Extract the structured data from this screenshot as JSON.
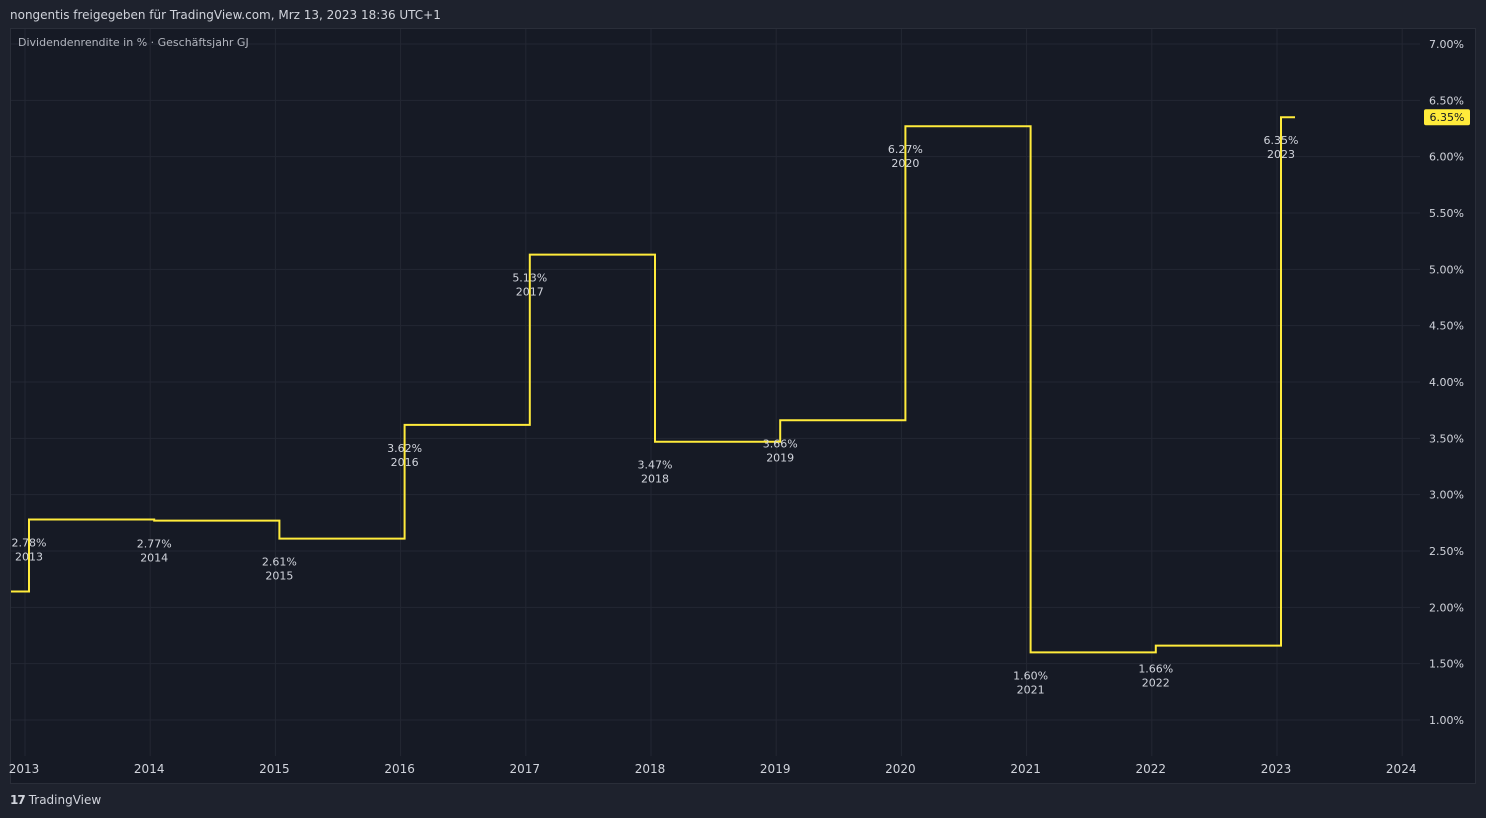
{
  "header": {
    "attribution": "nongentis freigegeben für TradingView.com, Mrz 13, 2023 18:36 UTC+1"
  },
  "legend": {
    "label": "Dividendenrendite in % · Geschäftsjahr GJ"
  },
  "footer": {
    "brand": "TradingView",
    "logo_icon": "tradingview-logo-icon"
  },
  "colors": {
    "line": "#ffeb3b",
    "background": "#161a25",
    "grid": "#232733",
    "text": "#d1d4dc"
  },
  "chart_data": {
    "type": "line",
    "step": true,
    "x_ticks": [
      "2013",
      "2014",
      "2015",
      "2016",
      "2017",
      "2018",
      "2019",
      "2020",
      "2021",
      "2022",
      "2023",
      "2024"
    ],
    "y_ticks": [
      "7.00%",
      "6.50%",
      "6.00%",
      "5.50%",
      "5.00%",
      "4.50%",
      "4.00%",
      "3.50%",
      "3.00%",
      "2.50%",
      "2.00%",
      "1.50%",
      "1.00%"
    ],
    "ylim": [
      0.8,
      7.2
    ],
    "points": [
      {
        "year": 2013,
        "value": 2.78,
        "label": "2.78%",
        "year_label": "2013"
      },
      {
        "year": 2014,
        "value": 2.77,
        "label": "2.77%",
        "year_label": "2014"
      },
      {
        "year": 2015,
        "value": 2.61,
        "label": "2.61%",
        "year_label": "2015"
      },
      {
        "year": 2016,
        "value": 3.62,
        "label": "3.62%",
        "year_label": "2016"
      },
      {
        "year": 2017,
        "value": 5.13,
        "label": "5.13%",
        "year_label": "2017"
      },
      {
        "year": 2018,
        "value": 3.47,
        "label": "3.47%",
        "year_label": "2018"
      },
      {
        "year": 2019,
        "value": 3.66,
        "label": "3.66%",
        "year_label": "2019"
      },
      {
        "year": 2020,
        "value": 6.27,
        "label": "6.27%",
        "year_label": "2020"
      },
      {
        "year": 2021,
        "value": 1.6,
        "label": "1.60%",
        "year_label": "2021"
      },
      {
        "year": 2022,
        "value": 1.66,
        "label": "1.66%",
        "year_label": "2022"
      },
      {
        "year": 2023,
        "value": 6.35,
        "label": "6.35%",
        "year_label": "2023"
      }
    ],
    "start_value": 2.14,
    "last_value_label": "6.35%"
  }
}
